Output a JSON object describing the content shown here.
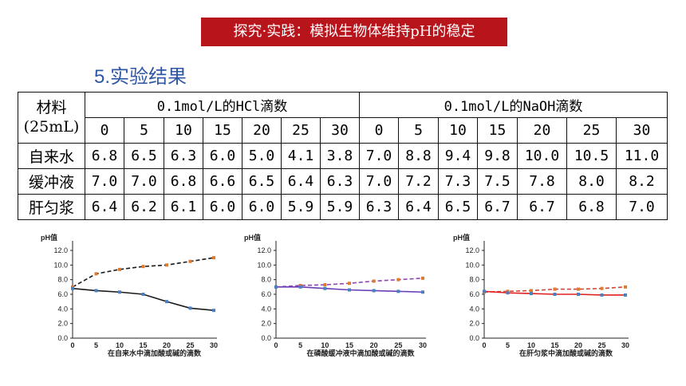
{
  "banner": "探究·实践：模拟生物体维持pH的稳定",
  "subtitle": "5.实验结果",
  "table": {
    "corner_line1": "材料",
    "corner_line2": "(25mL)",
    "group_hcl": "0.1mol/L的HCl滴数",
    "group_naoh": "0.1mol/L的NaOH滴数",
    "drops_hcl": [
      "0",
      "5",
      "10",
      "15",
      "20",
      "25",
      "30"
    ],
    "drops_naoh": [
      "0",
      "5",
      "10",
      "15",
      "20",
      "25",
      "30"
    ],
    "rows": [
      {
        "name": "自来水",
        "hcl": [
          "6.8",
          "6.5",
          "6.3",
          "6.0",
          "5.0",
          "4.1",
          "3.8"
        ],
        "naoh": [
          "7.0",
          "8.8",
          "9.4",
          "9.8",
          "10.0",
          "10.5",
          "11.0"
        ]
      },
      {
        "name": "缓冲液",
        "hcl": [
          "7.0",
          "7.0",
          "6.8",
          "6.6",
          "6.5",
          "6.4",
          "6.3"
        ],
        "naoh": [
          "7.0",
          "7.2",
          "7.3",
          "7.5",
          "7.8",
          "8.0",
          "8.2"
        ]
      },
      {
        "name": "肝匀浆",
        "hcl": [
          "6.4",
          "6.2",
          "6.1",
          "6.0",
          "6.0",
          "5.9",
          "5.9"
        ],
        "naoh": [
          "6.3",
          "6.4",
          "6.5",
          "6.7",
          "6.7",
          "6.8",
          "7.0"
        ]
      }
    ]
  },
  "chart_data": [
    {
      "type": "line",
      "ylabel": "pH值",
      "xlabel": "在自来水中滴加酸或碱的滴数",
      "x": [
        0,
        5,
        10,
        15,
        20,
        25,
        30
      ],
      "xticks": [
        "0",
        "5",
        "10",
        "15",
        "20",
        "25",
        "30"
      ],
      "yticks": [
        "0.0",
        "2.0",
        "4.0",
        "6.0",
        "8.0",
        "10.0",
        "12.0"
      ],
      "ylim": [
        0,
        12
      ],
      "series": [
        {
          "values": [
            7.0,
            8.8,
            9.4,
            9.8,
            10.0,
            10.5,
            11.0
          ],
          "color": "#1a1a1a",
          "dash": true,
          "marker": "#e07a2c"
        },
        {
          "values": [
            6.8,
            6.5,
            6.3,
            6.0,
            5.0,
            4.1,
            3.8
          ],
          "color": "#1a1a1a",
          "dash": false,
          "marker": "#4a7fc1"
        }
      ]
    },
    {
      "type": "line",
      "ylabel": "pH值",
      "xlabel": "在磷酸缓冲液中滴加酸或碱的滴数",
      "x": [
        0,
        5,
        10,
        15,
        20,
        25,
        30
      ],
      "xticks": [
        "0",
        "5",
        "10",
        "15",
        "20",
        "25",
        "30"
      ],
      "yticks": [
        "0.0",
        "2.0",
        "4.0",
        "6.0",
        "8.0",
        "10.0",
        "12.0"
      ],
      "ylim": [
        0,
        12
      ],
      "series": [
        {
          "values": [
            7.0,
            7.2,
            7.3,
            7.5,
            7.8,
            8.0,
            8.2
          ],
          "color": "#8e46b0",
          "dash": true,
          "marker": "#e07a2c"
        },
        {
          "values": [
            7.0,
            7.0,
            6.8,
            6.6,
            6.5,
            6.4,
            6.3
          ],
          "color": "#6a3fb5",
          "dash": false,
          "marker": "#4a7fc1"
        }
      ]
    },
    {
      "type": "line",
      "ylabel": "pH值",
      "xlabel": "在肝匀浆中滴加酸或碱的滴数",
      "x": [
        0,
        5,
        10,
        15,
        20,
        25,
        30
      ],
      "xticks": [
        "0",
        "5",
        "10",
        "15",
        "20",
        "25",
        "30"
      ],
      "yticks": [
        "0.0",
        "2.0",
        "4.0",
        "6.0",
        "8.0",
        "10.0",
        "12.0"
      ],
      "ylim": [
        0,
        12
      ],
      "series": [
        {
          "values": [
            6.3,
            6.4,
            6.5,
            6.7,
            6.7,
            6.8,
            7.0
          ],
          "color": "#d9432f",
          "dash": true,
          "marker": "#e07a2c"
        },
        {
          "values": [
            6.4,
            6.2,
            6.1,
            6.0,
            6.0,
            5.9,
            5.9
          ],
          "color": "#e02020",
          "dash": false,
          "marker": "#4a7fc1"
        }
      ]
    }
  ]
}
